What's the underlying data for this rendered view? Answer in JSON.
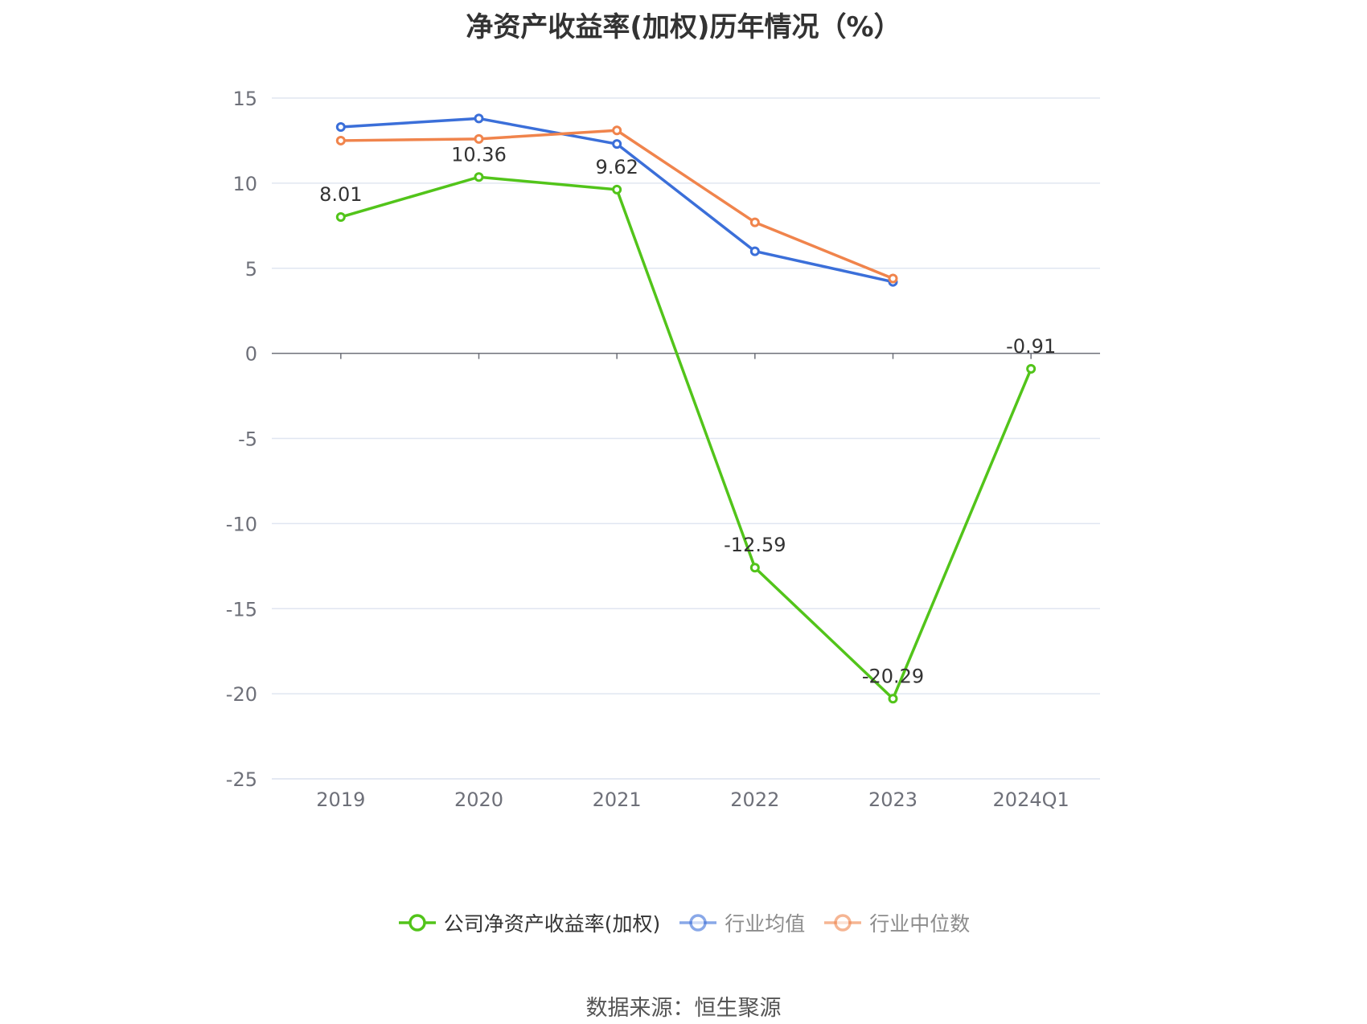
{
  "chart_data": {
    "type": "line",
    "title": "净资产收益率(加权)历年情况（%）",
    "source": "数据来源：恒生聚源",
    "categories": [
      "2019",
      "2020",
      "2021",
      "2022",
      "2023",
      "2024Q1"
    ],
    "y_ticks": [
      "15",
      "10",
      "5",
      "0",
      "-5",
      "-10",
      "-15",
      "-20",
      "-25"
    ],
    "ylim": [
      -25,
      15
    ],
    "grid": true,
    "legend_position": "bottom",
    "series": [
      {
        "name": "公司净资产收益率(加权)",
        "color": "#52c41a",
        "values": [
          8.01,
          10.36,
          9.62,
          -12.59,
          -20.29,
          -0.91
        ],
        "labels": [
          "8.01",
          "10.36",
          "9.62",
          "-12.59",
          "-20.29",
          "-0.91"
        ]
      },
      {
        "name": "行业均值",
        "color": "#3b6fd9",
        "values": [
          13.3,
          13.8,
          12.3,
          6.0,
          4.2,
          null
        ]
      },
      {
        "name": "行业中位数",
        "color": "#f0844c",
        "values": [
          12.5,
          12.6,
          13.1,
          7.7,
          4.4,
          null
        ]
      }
    ]
  }
}
